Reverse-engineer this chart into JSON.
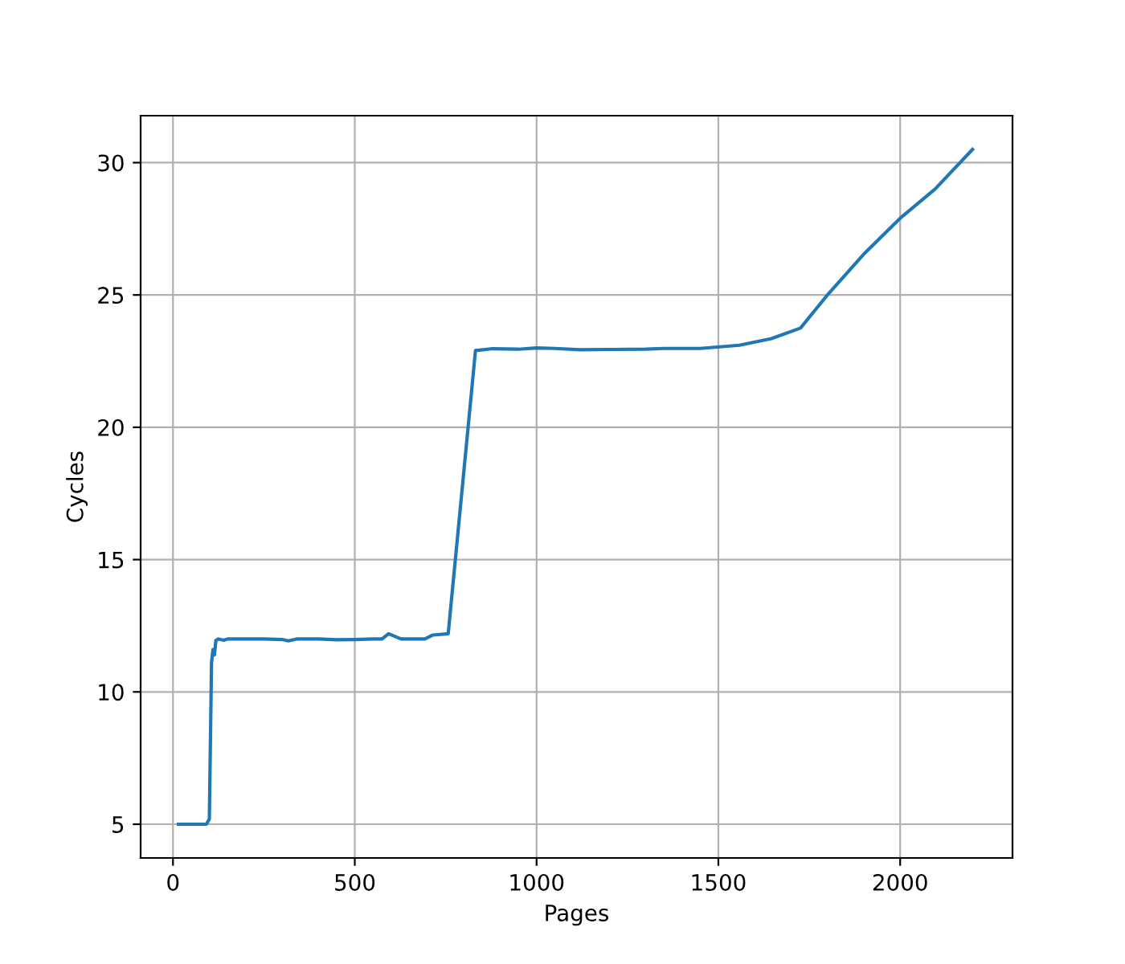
{
  "chart_data": {
    "type": "line",
    "xlabel": "Pages",
    "ylabel": "Cycles",
    "x": [
      15,
      50,
      92,
      100,
      106,
      110,
      114,
      118,
      125,
      140,
      150,
      200,
      250,
      300,
      317,
      340,
      400,
      450,
      500,
      550,
      575,
      593,
      627,
      693,
      715,
      757,
      832,
      880,
      950,
      1000,
      1050,
      1120,
      1200,
      1300,
      1350,
      1450,
      1558,
      1646,
      1726,
      1800,
      1904,
      2000,
      2096,
      2199
    ],
    "values": [
      5,
      5,
      5,
      5.2,
      11.1,
      11.6,
      11.4,
      11.95,
      12.0,
      11.95,
      12.0,
      12.0,
      12.0,
      11.98,
      11.93,
      12.0,
      12.0,
      11.97,
      11.98,
      12.0,
      12.0,
      12.2,
      12.0,
      12.0,
      12.15,
      12.2,
      22.9,
      22.97,
      22.95,
      23.0,
      22.98,
      22.93,
      22.94,
      22.95,
      22.98,
      22.98,
      23.1,
      23.35,
      23.75,
      25.0,
      26.6,
      27.9,
      29.0,
      30.5
    ],
    "color": "#1f77b4",
    "xlim": [
      -89,
      2309
    ],
    "ylim": [
      3.725,
      31.775
    ],
    "xticks": [
      0,
      500,
      1000,
      1500,
      2000
    ],
    "yticks": [
      5,
      10,
      15,
      20,
      25,
      30
    ],
    "grid": true
  }
}
